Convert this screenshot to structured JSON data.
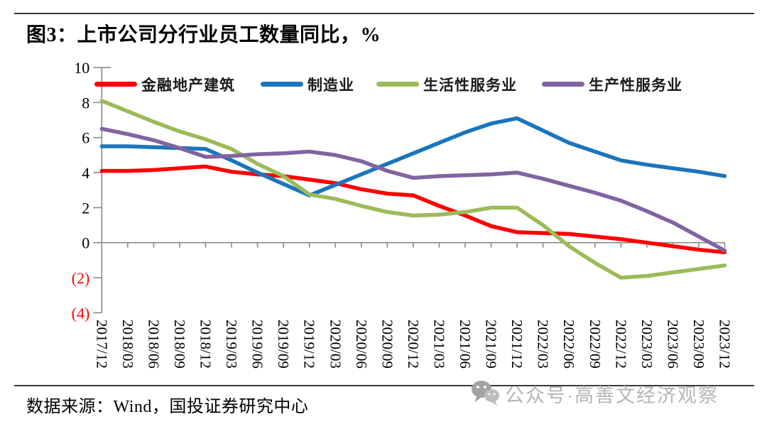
{
  "page": {
    "title": "图3：上市公司分行业员工数量同比，%"
  },
  "footer": {
    "source": "数据来源：Wind，国投证券研究中心"
  },
  "watermark": {
    "text": "公众号·高善文经济观察",
    "icon": "wechat-icon",
    "color": "#b5b5b5"
  },
  "chart_data": {
    "type": "line",
    "title": "上市公司分行业员工数量同比，%",
    "xlabel": "",
    "ylabel": "",
    "ylim": [
      -4,
      10
    ],
    "grid": false,
    "legend_position": "top-inside",
    "axis_color": "#898989",
    "negative_tick_color": "#ff0000",
    "yticks": [
      {
        "value": 10,
        "label": "10"
      },
      {
        "value": 8,
        "label": "8"
      },
      {
        "value": 6,
        "label": "6"
      },
      {
        "value": 4,
        "label": "4"
      },
      {
        "value": 2,
        "label": "2"
      },
      {
        "value": 0,
        "label": "0"
      },
      {
        "value": -2,
        "label": "(2)"
      },
      {
        "value": -4,
        "label": "(4)"
      }
    ],
    "x": [
      "2017/12",
      "2018/03",
      "2018/06",
      "2018/09",
      "2018/12",
      "2019/03",
      "2019/06",
      "2019/09",
      "2019/12",
      "2020/03",
      "2020/06",
      "2020/09",
      "2020/12",
      "2021/03",
      "2021/06",
      "2021/09",
      "2021/12",
      "2022/03",
      "2022/06",
      "2022/09",
      "2022/12",
      "2023/03",
      "2023/06",
      "2023/09",
      "2023/12"
    ],
    "series": [
      {
        "name": "金融地产建筑",
        "color": "#fe0000",
        "values": [
          4.1,
          4.1,
          4.15,
          4.25,
          4.35,
          4.05,
          3.9,
          3.8,
          3.6,
          3.4,
          3.05,
          2.8,
          2.7,
          2.1,
          1.55,
          0.95,
          0.6,
          0.55,
          0.5,
          0.35,
          0.2,
          0.0,
          -0.2,
          -0.4,
          -0.55
        ]
      },
      {
        "name": "制造业",
        "color": "#1b75bc",
        "values": [
          5.5,
          5.5,
          5.45,
          5.4,
          5.35,
          4.7,
          4.0,
          3.35,
          2.7,
          3.3,
          3.9,
          4.5,
          5.1,
          5.7,
          6.3,
          6.8,
          7.1,
          6.4,
          5.7,
          5.2,
          4.7,
          4.45,
          4.25,
          4.05,
          3.8
        ]
      },
      {
        "name": "生活性服务业",
        "color": "#9bbb59",
        "values": [
          8.1,
          7.5,
          6.9,
          6.35,
          5.9,
          5.35,
          4.5,
          3.8,
          2.75,
          2.5,
          2.1,
          1.75,
          1.55,
          1.6,
          1.75,
          2.0,
          2.0,
          1.0,
          -0.2,
          -1.15,
          -2.0,
          -1.9,
          -1.7,
          -1.5,
          -1.3
        ]
      },
      {
        "name": "生产性服务业",
        "color": "#8064a2",
        "values": [
          6.5,
          6.2,
          5.85,
          5.4,
          4.9,
          4.95,
          5.05,
          5.1,
          5.2,
          5.0,
          4.65,
          4.1,
          3.7,
          3.8,
          3.85,
          3.9,
          4.0,
          3.65,
          3.25,
          2.85,
          2.4,
          1.8,
          1.15,
          0.35,
          -0.45
        ]
      }
    ]
  }
}
